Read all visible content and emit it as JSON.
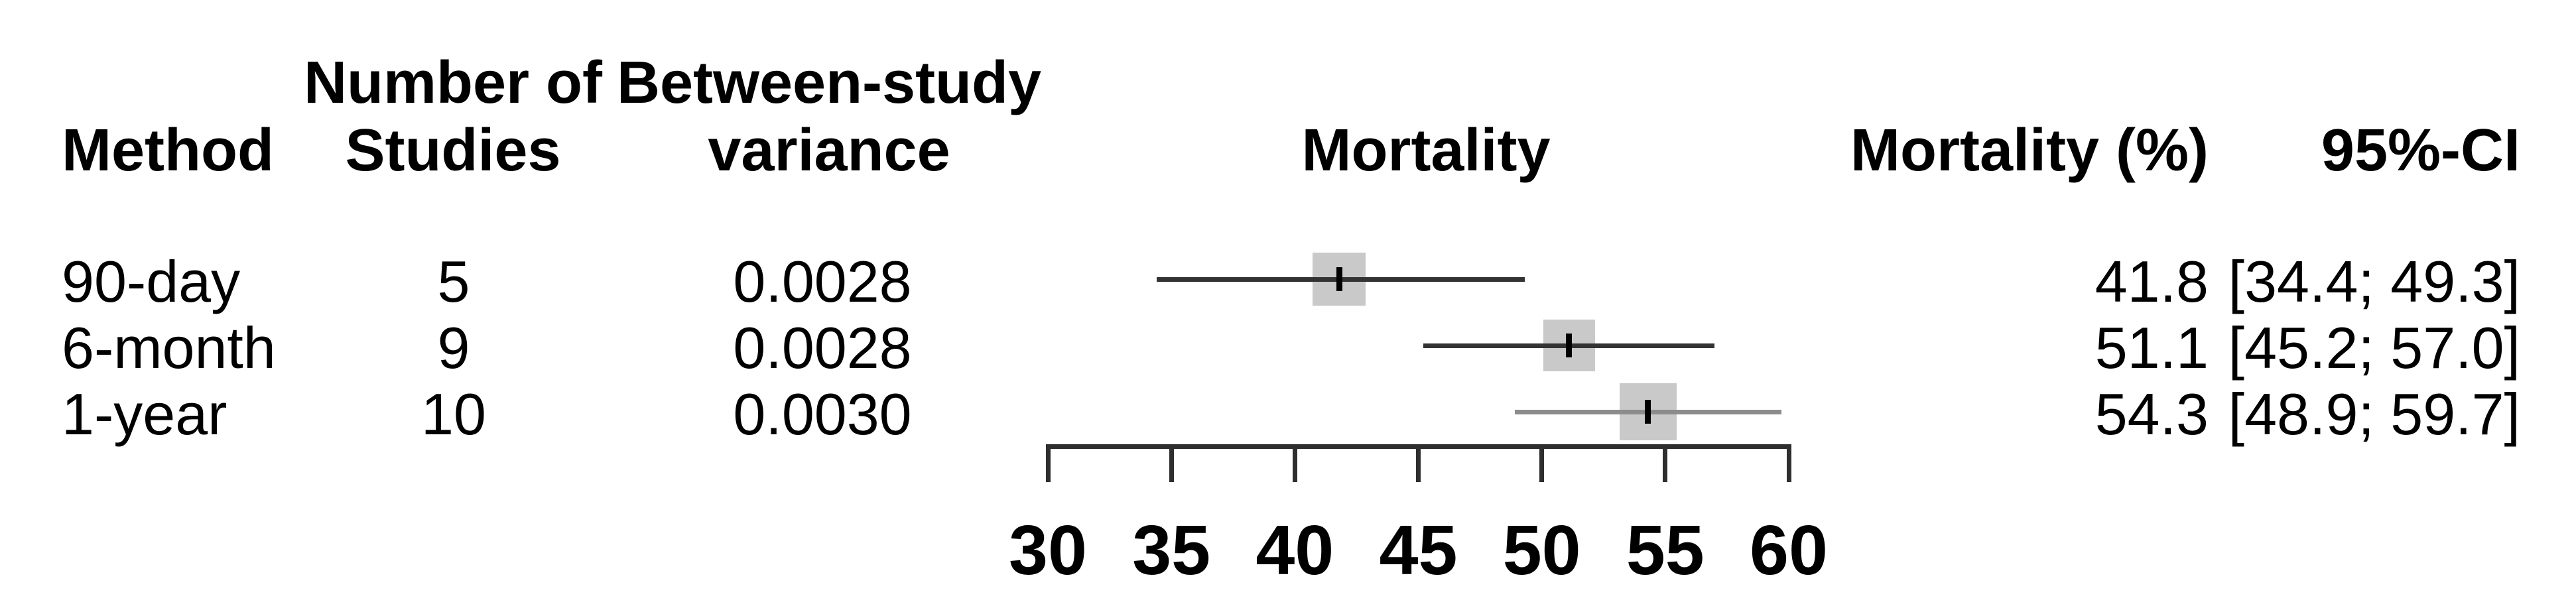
{
  "figure": {
    "background_color": "#ffffff",
    "text_color": "#000000"
  },
  "chart_data": {
    "type": "forest",
    "title": "",
    "columns": {
      "method": "Method",
      "studies_line1": "Number of",
      "studies_line2": "Studies",
      "variance_line1": "Between-study",
      "variance_line2": "variance",
      "plot": "Mortality",
      "effect": "Mortality (%)",
      "ci": "95%-CI"
    },
    "axis": {
      "min": 30,
      "max": 60,
      "ticks": [
        30,
        35,
        40,
        45,
        50,
        55,
        60
      ]
    },
    "rows": [
      {
        "method": "90-day",
        "n_studies": "5",
        "variance": "0.0028",
        "estimate": 41.8,
        "ci_lower": 34.4,
        "ci_upper": 49.3,
        "estimate_label": "41.8",
        "ci_label": "[34.4; 49.3]",
        "line_color": "#333333",
        "square_size": 80
      },
      {
        "method": "6-month",
        "n_studies": "9",
        "variance": "0.0028",
        "estimate": 51.1,
        "ci_lower": 45.2,
        "ci_upper": 57.0,
        "estimate_label": "51.1",
        "ci_label": "[45.2; 57.0]",
        "line_color": "#333333",
        "square_size": 78
      },
      {
        "method": "1-year",
        "n_studies": "10",
        "variance": "0.0030",
        "estimate": 54.3,
        "ci_lower": 48.9,
        "ci_upper": 59.7,
        "estimate_label": "54.3",
        "ci_label": "[48.9; 59.7]",
        "line_color": "#8c8c8c",
        "square_size": 86
      }
    ],
    "square_color": "#c9c9c9",
    "marker_color": "#000000",
    "axis_color": "#2e2e2e",
    "legend_position": "none",
    "grid": false
  }
}
